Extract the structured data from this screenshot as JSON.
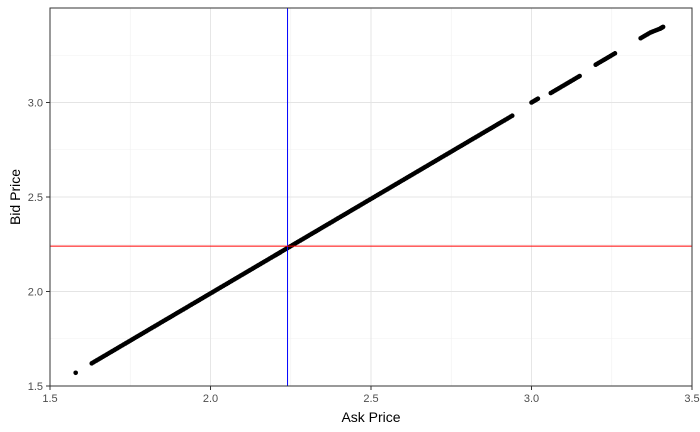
{
  "chart_data": {
    "type": "scatter",
    "title": "",
    "xlabel": "Ask Price",
    "ylabel": "Bid Price",
    "xlim": [
      1.5,
      3.5
    ],
    "ylim": [
      1.5,
      3.5
    ],
    "x_ticks": [
      1.5,
      2.0,
      2.5,
      3.0,
      3.5
    ],
    "x_tick_labels": [
      "1.5",
      "2.0",
      "2.5",
      "3.0",
      "3.5"
    ],
    "y_ticks": [
      1.5,
      2.0,
      2.5,
      3.0
    ],
    "y_tick_labels": [
      "1.5",
      "2.0",
      "2.5",
      "3.0"
    ],
    "grid": true,
    "legend": "none",
    "reference_lines": [
      {
        "orientation": "vertical",
        "value": 2.24,
        "color": "#0000ff"
      },
      {
        "orientation": "horizontal",
        "value": 2.24,
        "color": "#ff0000"
      }
    ],
    "point_color": "#000000",
    "series": [
      {
        "x": [
          1.58,
          1.63,
          1.66,
          1.69,
          1.72,
          1.75,
          1.78,
          1.81,
          1.84,
          1.87,
          1.9,
          1.93,
          1.96,
          1.99,
          2.02,
          2.05,
          2.08,
          2.11,
          2.14,
          2.17,
          2.2,
          2.22,
          2.25,
          2.28,
          2.31,
          2.34,
          2.37,
          2.4,
          2.43,
          2.46,
          2.49,
          2.52,
          2.55,
          2.58,
          2.61,
          2.64,
          2.67,
          2.7,
          2.73,
          2.76,
          2.79,
          2.82,
          2.85,
          2.88,
          2.91,
          2.94,
          3.0,
          3.02,
          3.06,
          3.09,
          3.12,
          3.15,
          3.2,
          3.23,
          3.26,
          3.34,
          3.37,
          3.4,
          3.41
        ],
        "y": [
          1.57,
          1.62,
          1.65,
          1.68,
          1.71,
          1.74,
          1.77,
          1.8,
          1.83,
          1.86,
          1.89,
          1.92,
          1.95,
          1.98,
          2.01,
          2.04,
          2.07,
          2.1,
          2.13,
          2.16,
          2.19,
          2.21,
          2.24,
          2.27,
          2.3,
          2.33,
          2.36,
          2.39,
          2.42,
          2.45,
          2.48,
          2.51,
          2.54,
          2.57,
          2.6,
          2.63,
          2.66,
          2.69,
          2.72,
          2.75,
          2.78,
          2.81,
          2.84,
          2.87,
          2.9,
          2.93,
          3.0,
          3.02,
          3.05,
          3.08,
          3.11,
          3.14,
          3.2,
          3.23,
          3.26,
          3.34,
          3.37,
          3.39,
          3.4
        ]
      }
    ]
  }
}
